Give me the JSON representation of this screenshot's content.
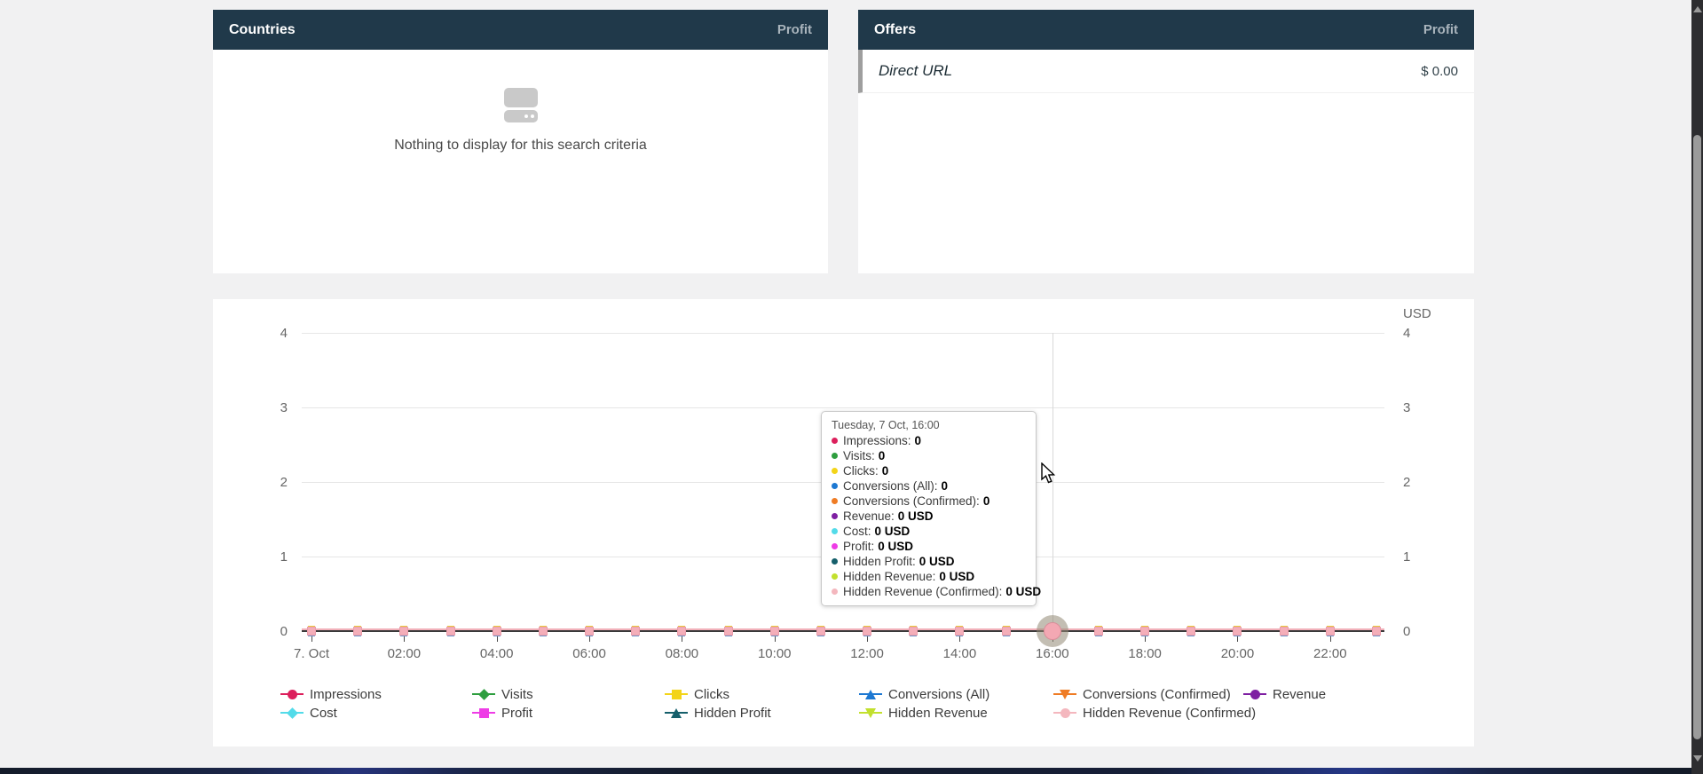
{
  "panels": {
    "countries": {
      "title": "Countries",
      "metric": "Profit",
      "empty_text": "Nothing to display for this search criteria"
    },
    "offers": {
      "title": "Offers",
      "metric": "Profit",
      "rows": [
        {
          "name": "Direct URL",
          "value": "$ 0.00"
        }
      ]
    }
  },
  "chart_data": {
    "type": "line",
    "title": "",
    "unit_label": "USD",
    "ylim": [
      0,
      4
    ],
    "y_ticks_left": [
      "4",
      "3",
      "2",
      "1",
      "0"
    ],
    "y_ticks_right": [
      "4",
      "3",
      "2",
      "1",
      "0"
    ],
    "x_tick_labels": [
      "7. Oct",
      "02:00",
      "04:00",
      "06:00",
      "08:00",
      "10:00",
      "12:00",
      "14:00",
      "16:00",
      "18:00",
      "20:00",
      "22:00"
    ],
    "x_start": "7 Oct 00:00",
    "x_interval": "1 hour",
    "points_per_series": 24,
    "hovered_point_index": 16,
    "grid": "horizontal",
    "legend_position": "bottom",
    "series": [
      {
        "name": "Impressions",
        "color": "#dc1f5c",
        "marker": "circle",
        "values": [
          0,
          0,
          0,
          0,
          0,
          0,
          0,
          0,
          0,
          0,
          0,
          0,
          0,
          0,
          0,
          0,
          0,
          0,
          0,
          0,
          0,
          0,
          0,
          0
        ]
      },
      {
        "name": "Visits",
        "color": "#2e9e3f",
        "marker": "diamond",
        "values": [
          0,
          0,
          0,
          0,
          0,
          0,
          0,
          0,
          0,
          0,
          0,
          0,
          0,
          0,
          0,
          0,
          0,
          0,
          0,
          0,
          0,
          0,
          0,
          0
        ]
      },
      {
        "name": "Clicks",
        "color": "#f3d418",
        "marker": "square",
        "values": [
          0,
          0,
          0,
          0,
          0,
          0,
          0,
          0,
          0,
          0,
          0,
          0,
          0,
          0,
          0,
          0,
          0,
          0,
          0,
          0,
          0,
          0,
          0,
          0
        ]
      },
      {
        "name": "Conversions (All)",
        "color": "#1d78d2",
        "marker": "triangle",
        "values": [
          0,
          0,
          0,
          0,
          0,
          0,
          0,
          0,
          0,
          0,
          0,
          0,
          0,
          0,
          0,
          0,
          0,
          0,
          0,
          0,
          0,
          0,
          0,
          0
        ]
      },
      {
        "name": "Conversions (Confirmed)",
        "color": "#ef7c25",
        "marker": "triangle-down",
        "values": [
          0,
          0,
          0,
          0,
          0,
          0,
          0,
          0,
          0,
          0,
          0,
          0,
          0,
          0,
          0,
          0,
          0,
          0,
          0,
          0,
          0,
          0,
          0,
          0
        ]
      },
      {
        "name": "Revenue",
        "color": "#7e1fa2",
        "marker": "circle",
        "values": [
          0,
          0,
          0,
          0,
          0,
          0,
          0,
          0,
          0,
          0,
          0,
          0,
          0,
          0,
          0,
          0,
          0,
          0,
          0,
          0,
          0,
          0,
          0,
          0
        ]
      },
      {
        "name": "Cost",
        "color": "#53dbe9",
        "marker": "diamond",
        "values": [
          0,
          0,
          0,
          0,
          0,
          0,
          0,
          0,
          0,
          0,
          0,
          0,
          0,
          0,
          0,
          0,
          0,
          0,
          0,
          0,
          0,
          0,
          0,
          0
        ]
      },
      {
        "name": "Profit",
        "color": "#ee3ce6",
        "marker": "square",
        "values": [
          0,
          0,
          0,
          0,
          0,
          0,
          0,
          0,
          0,
          0,
          0,
          0,
          0,
          0,
          0,
          0,
          0,
          0,
          0,
          0,
          0,
          0,
          0,
          0
        ]
      },
      {
        "name": "Hidden Profit",
        "color": "#155f6b",
        "marker": "triangle",
        "values": [
          0,
          0,
          0,
          0,
          0,
          0,
          0,
          0,
          0,
          0,
          0,
          0,
          0,
          0,
          0,
          0,
          0,
          0,
          0,
          0,
          0,
          0,
          0,
          0
        ]
      },
      {
        "name": "Hidden Revenue",
        "color": "#c2e02e",
        "marker": "triangle-down",
        "values": [
          0,
          0,
          0,
          0,
          0,
          0,
          0,
          0,
          0,
          0,
          0,
          0,
          0,
          0,
          0,
          0,
          0,
          0,
          0,
          0,
          0,
          0,
          0,
          0
        ]
      },
      {
        "name": "Hidden Revenue (Confirmed)",
        "color": "#f4b7be",
        "marker": "circle",
        "values": [
          0,
          0,
          0,
          0,
          0,
          0,
          0,
          0,
          0,
          0,
          0,
          0,
          0,
          0,
          0,
          0,
          0,
          0,
          0,
          0,
          0,
          0,
          0,
          0
        ]
      }
    ],
    "tooltip": {
      "header": "Tuesday, 7 Oct, 16:00",
      "rows": [
        {
          "name": "Impressions",
          "value": "0"
        },
        {
          "name": "Visits",
          "value": "0"
        },
        {
          "name": "Clicks",
          "value": "0"
        },
        {
          "name": "Conversions (All)",
          "value": "0"
        },
        {
          "name": "Conversions (Confirmed)",
          "value": "0"
        },
        {
          "name": "Revenue",
          "value": "0 USD"
        },
        {
          "name": "Cost",
          "value": "0 USD"
        },
        {
          "name": "Profit",
          "value": "0 USD"
        },
        {
          "name": "Hidden Profit",
          "value": "0 USD"
        },
        {
          "name": "Hidden Revenue",
          "value": "0 USD"
        },
        {
          "name": "Hidden Revenue (Confirmed)",
          "value": "0 USD"
        }
      ]
    }
  }
}
